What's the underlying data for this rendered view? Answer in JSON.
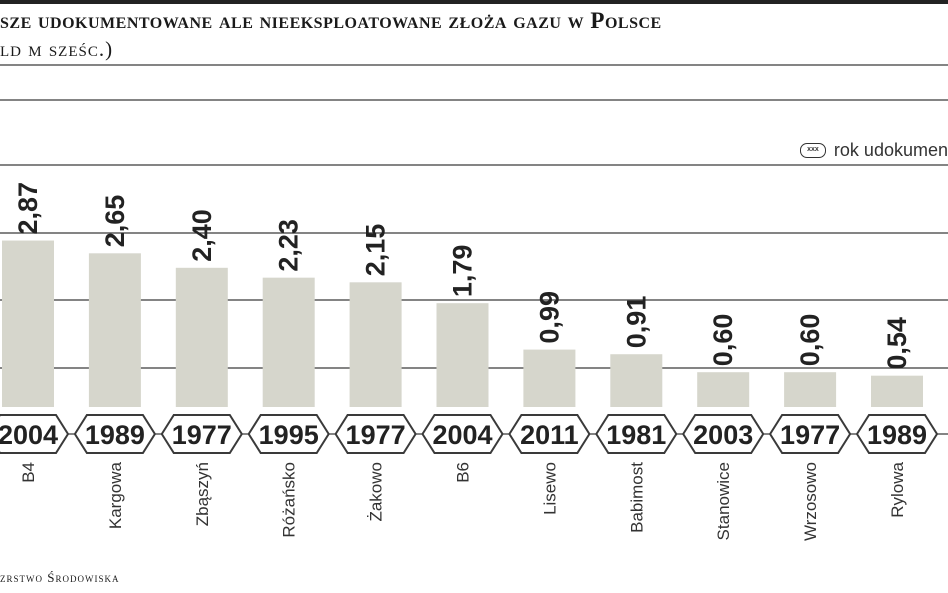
{
  "header": {
    "title": "sze udokumentowane ale nieeksploatowane złoża gazu w Polsce",
    "subtitle": "ld m sześc.)"
  },
  "legend": {
    "swatch_text": "xxx",
    "label": "rok udokumen"
  },
  "source": "zrstwo Środowiska",
  "colors": {
    "bar": "#d6d6cc",
    "grid": "#3a3a3a",
    "text": "#222222",
    "badge_fill": "#ffffff"
  },
  "chart_data": {
    "type": "bar",
    "title": "sze udokumentowane ale nieeksploatowane złoża gazu w Polsce",
    "ylabel": "ld m sześc.)",
    "xlabel": "",
    "ylim": [
      0,
      3.5
    ],
    "grid": true,
    "legend": "top-right",
    "categories": [
      "B4",
      "Kargowa",
      "Zbąszyń",
      "Różańsko",
      "Żakowo",
      "B6",
      "Lisewo",
      "Babimost",
      "Stanowice",
      "Wrzosowo",
      "Rylowa"
    ],
    "values": [
      2.87,
      2.65,
      2.4,
      2.23,
      2.15,
      1.79,
      0.99,
      0.91,
      0.6,
      0.6,
      0.54
    ],
    "value_labels": [
      "2,87",
      "2,65",
      "2,40",
      "2,23",
      "2,15",
      "1,79",
      "0,99",
      "0,91",
      "0,60",
      "0,60",
      "0,54"
    ],
    "years": [
      "2004",
      "1989",
      "1977",
      "1995",
      "1977",
      "2004",
      "2011",
      "1981",
      "2003",
      "1977",
      "1989"
    ]
  }
}
